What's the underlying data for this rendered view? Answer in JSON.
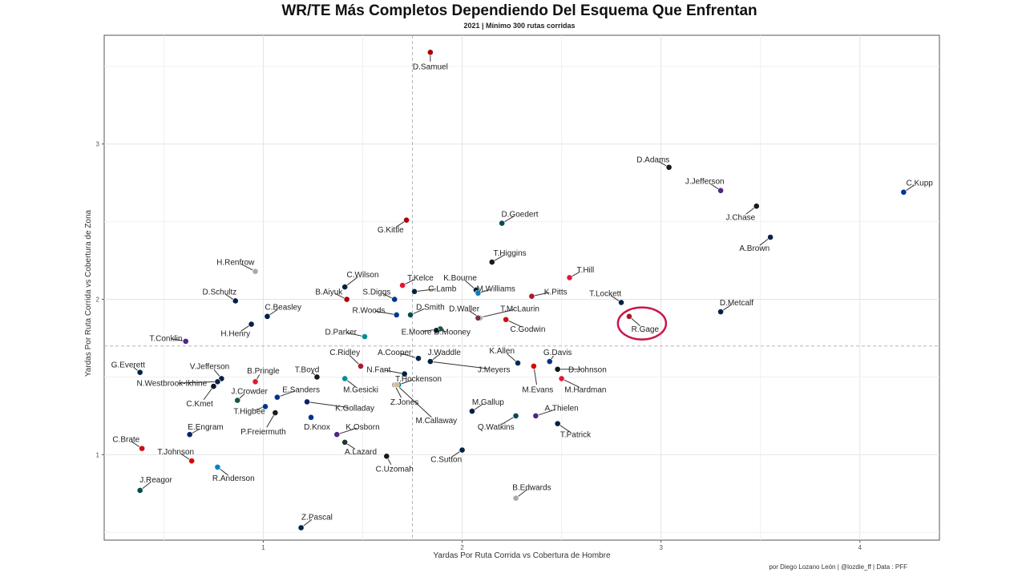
{
  "chart_data": {
    "type": "scatter",
    "title": "WR/TE Más Completos Dependiendo Del Esquema Que Enfrentan",
    "subtitle": "2021 | Mínimo 300 rutas corridas",
    "xlabel": "Yardas Por Ruta Corrida vs Cobertura de Hombre",
    "ylabel": "Yardas Por Ruta Corrida vs Cobertura de Zona",
    "caption": "por Diego Lozano León | @lozdie_ff | Data : PFF",
    "xlim": [
      0.2,
      4.4
    ],
    "ylim": [
      0.45,
      3.7
    ],
    "xticks": [
      1,
      2,
      3,
      4
    ],
    "yticks": [
      1,
      2,
      3
    ],
    "x_reference": 1.75,
    "y_reference": 1.7,
    "highlight": "R.Gage",
    "highlight_color": "#c8174a",
    "points": [
      {
        "name": "D.Samuel",
        "x": 1.84,
        "y": 3.59,
        "color": "#aa0000",
        "lx": 1.84,
        "ly": 3.5
      },
      {
        "name": "D.Adams",
        "x": 3.04,
        "y": 2.85,
        "color": "#1a1a1a",
        "lx": 2.96,
        "ly": 2.9
      },
      {
        "name": "J.Jefferson",
        "x": 3.3,
        "y": 2.7,
        "color": "#4f2683",
        "lx": 3.22,
        "ly": 2.76
      },
      {
        "name": "C.Kupp",
        "x": 4.22,
        "y": 2.69,
        "color": "#003594",
        "lx": 4.3,
        "ly": 2.75
      },
      {
        "name": "J.Chase",
        "x": 3.48,
        "y": 2.6,
        "color": "#1a1a1a",
        "lx": 3.4,
        "ly": 2.53
      },
      {
        "name": "A.Brown",
        "x": 3.55,
        "y": 2.4,
        "color": "#0c2340",
        "lx": 3.47,
        "ly": 2.33
      },
      {
        "name": "D.Goedert",
        "x": 2.2,
        "y": 2.49,
        "color": "#004c54",
        "lx": 2.29,
        "ly": 2.55
      },
      {
        "name": "G.Kittle",
        "x": 1.72,
        "y": 2.51,
        "color": "#aa0000",
        "lx": 1.64,
        "ly": 2.45
      },
      {
        "name": "T.Higgins",
        "x": 2.15,
        "y": 2.24,
        "color": "#1a1a1a",
        "lx": 2.24,
        "ly": 2.3
      },
      {
        "name": "T.Hill",
        "x": 2.54,
        "y": 2.14,
        "color": "#e31837",
        "lx": 2.62,
        "ly": 2.19
      },
      {
        "name": "H.Renfrow",
        "x": 0.96,
        "y": 2.18,
        "color": "#a5acaf",
        "lx": 0.86,
        "ly": 2.24
      },
      {
        "name": "C.Wilson",
        "x": 1.41,
        "y": 2.08,
        "color": "#002244",
        "lx": 1.5,
        "ly": 2.16
      },
      {
        "name": "T.Kelce",
        "x": 1.7,
        "y": 2.09,
        "color": "#e31837",
        "lx": 1.79,
        "ly": 2.14
      },
      {
        "name": "K.Bourne",
        "x": 2.07,
        "y": 2.06,
        "color": "#002244",
        "lx": 1.99,
        "ly": 2.14
      },
      {
        "name": "M.Williams",
        "x": 2.08,
        "y": 2.04,
        "color": "#0080c6",
        "lx": 2.17,
        "ly": 2.07
      },
      {
        "name": "C.Lamb",
        "x": 1.76,
        "y": 2.05,
        "color": "#002244",
        "lx": 1.9,
        "ly": 2.07
      },
      {
        "name": "S.Diggs",
        "x": 1.66,
        "y": 2.0,
        "color": "#00338d",
        "lx": 1.57,
        "ly": 2.05
      },
      {
        "name": "B.Aiyuk",
        "x": 1.42,
        "y": 2.0,
        "color": "#aa0000",
        "lx": 1.33,
        "ly": 2.05
      },
      {
        "name": "K.Pitts",
        "x": 2.35,
        "y": 2.02,
        "color": "#a71930",
        "lx": 2.47,
        "ly": 2.05
      },
      {
        "name": "D.Schultz",
        "x": 0.86,
        "y": 1.99,
        "color": "#002244",
        "lx": 0.78,
        "ly": 2.05
      },
      {
        "name": "T.Lockett",
        "x": 2.8,
        "y": 1.98,
        "color": "#002244",
        "lx": 2.72,
        "ly": 2.04
      },
      {
        "name": "D.Metcalf",
        "x": 3.3,
        "y": 1.92,
        "color": "#002244",
        "lx": 3.38,
        "ly": 1.98
      },
      {
        "name": "D.Smith",
        "x": 1.74,
        "y": 1.9,
        "color": "#004c54",
        "lx": 1.84,
        "ly": 1.95
      },
      {
        "name": "R.Woods",
        "x": 1.67,
        "y": 1.9,
        "color": "#003594",
        "lx": 1.53,
        "ly": 1.93
      },
      {
        "name": "D.Waller",
        "x": 2.09,
        "y": 1.88,
        "color": "#a5acaf",
        "lx": 2.01,
        "ly": 1.94
      },
      {
        "name": "T.McLaurin",
        "x": 2.08,
        "y": 1.88,
        "color": "#773141",
        "lx": 2.29,
        "ly": 1.94
      },
      {
        "name": "R.Gage",
        "x": 2.84,
        "y": 1.89,
        "color": "#a71930",
        "lx": 2.92,
        "ly": 1.81
      },
      {
        "name": "C.Beasley",
        "x": 1.02,
        "y": 1.89,
        "color": "#002244",
        "lx": 1.1,
        "ly": 1.95
      },
      {
        "name": "C.Godwin",
        "x": 2.22,
        "y": 1.87,
        "color": "#d50a0a",
        "lx": 2.33,
        "ly": 1.81
      },
      {
        "name": "H.Henry",
        "x": 0.94,
        "y": 1.84,
        "color": "#002244",
        "lx": 0.86,
        "ly": 1.78
      },
      {
        "name": "E.Moore",
        "x": 1.89,
        "y": 1.81,
        "color": "#125740",
        "lx": 1.77,
        "ly": 1.79
      },
      {
        "name": "D.Mooney",
        "x": 1.87,
        "y": 1.8,
        "color": "#0b162a",
        "lx": 1.95,
        "ly": 1.79
      },
      {
        "name": "D.Parker",
        "x": 1.51,
        "y": 1.76,
        "color": "#008e97",
        "lx": 1.39,
        "ly": 1.79
      },
      {
        "name": "T.Conklin",
        "x": 0.61,
        "y": 1.73,
        "color": "#4f2683",
        "lx": 0.51,
        "ly": 1.75
      },
      {
        "name": "A.Cooper",
        "x": 1.78,
        "y": 1.62,
        "color": "#002244",
        "lx": 1.66,
        "ly": 1.66
      },
      {
        "name": "J.Waddle",
        "x": 1.84,
        "y": 1.6,
        "color": "#008e97",
        "lx": 1.91,
        "ly": 1.66
      },
      {
        "name": "C.Ridley",
        "x": 1.49,
        "y": 1.57,
        "color": "#a71930",
        "lx": 1.41,
        "ly": 1.66
      },
      {
        "name": "K.Allen",
        "x": 2.28,
        "y": 1.59,
        "color": "#002a5e",
        "lx": 2.2,
        "ly": 1.67
      },
      {
        "name": "G.Davis",
        "x": 2.44,
        "y": 1.6,
        "color": "#00338d",
        "lx": 2.48,
        "ly": 1.66
      },
      {
        "name": "J.Meyers",
        "x": 1.84,
        "y": 1.6,
        "color": "#002244",
        "lx": 2.16,
        "ly": 1.55
      },
      {
        "name": "D.Johnson",
        "x": 2.48,
        "y": 1.55,
        "color": "#101820",
        "lx": 2.63,
        "ly": 1.55
      },
      {
        "name": "G.Everett",
        "x": 0.38,
        "y": 1.53,
        "color": "#002244",
        "lx": 0.32,
        "ly": 1.58
      },
      {
        "name": "V.Jefferson",
        "x": 0.79,
        "y": 1.49,
        "color": "#002244",
        "lx": 0.73,
        "ly": 1.57
      },
      {
        "name": "B.Pringle",
        "x": 0.96,
        "y": 1.47,
        "color": "#e31837",
        "lx": 1.0,
        "ly": 1.54
      },
      {
        "name": "T.Boyd",
        "x": 1.27,
        "y": 1.5,
        "color": "#1a1a1a",
        "lx": 1.22,
        "ly": 1.55
      },
      {
        "name": "N.Fant",
        "x": 1.71,
        "y": 1.52,
        "color": "#002244",
        "lx": 1.58,
        "ly": 1.55
      },
      {
        "name": "T.Hockenson",
        "x": 1.68,
        "y": 1.45,
        "color": "#0076b6",
        "lx": 1.78,
        "ly": 1.49
      },
      {
        "name": "M.Gesicki",
        "x": 1.41,
        "y": 1.49,
        "color": "#008e97",
        "lx": 1.49,
        "ly": 1.42
      },
      {
        "name": "M.Evans",
        "x": 2.36,
        "y": 1.57,
        "color": "#d50a0a",
        "lx": 2.38,
        "ly": 1.42
      },
      {
        "name": "M.Hardman",
        "x": 2.5,
        "y": 1.49,
        "color": "#e31837",
        "lx": 2.62,
        "ly": 1.42
      },
      {
        "name": "N.Westbrook-Ikhine",
        "x": 0.77,
        "y": 1.47,
        "color": "#0c2340",
        "lx": 0.54,
        "ly": 1.46
      },
      {
        "name": "J.Crowder",
        "x": 0.87,
        "y": 1.35,
        "color": "#125740",
        "lx": 0.93,
        "ly": 1.41
      },
      {
        "name": "E.Sanders",
        "x": 1.07,
        "y": 1.37,
        "color": "#00338d",
        "lx": 1.19,
        "ly": 1.42
      },
      {
        "name": "C.Kmet",
        "x": 0.75,
        "y": 1.44,
        "color": "#0b162a",
        "lx": 0.68,
        "ly": 1.33
      },
      {
        "name": "Z.Jones",
        "x": 1.66,
        "y": 1.45,
        "color": "#a5acaf",
        "lx": 1.71,
        "ly": 1.34
      },
      {
        "name": "K.Golladay",
        "x": 1.22,
        "y": 1.34,
        "color": "#0b2265",
        "lx": 1.46,
        "ly": 1.3
      },
      {
        "name": "M.Gallup",
        "x": 2.05,
        "y": 1.28,
        "color": "#002244",
        "lx": 2.13,
        "ly": 1.34
      },
      {
        "name": "A.Thielen",
        "x": 2.37,
        "y": 1.25,
        "color": "#4f2683",
        "lx": 2.5,
        "ly": 1.3
      },
      {
        "name": "T.Higbee",
        "x": 1.01,
        "y": 1.31,
        "color": "#003594",
        "lx": 0.93,
        "ly": 1.28
      },
      {
        "name": "P.Freiermuth",
        "x": 1.06,
        "y": 1.27,
        "color": "#1a1a1a",
        "lx": 1.0,
        "ly": 1.15
      },
      {
        "name": "M.Callaway",
        "x": 1.67,
        "y": 1.45,
        "color": "#d3bc8d",
        "lx": 1.87,
        "ly": 1.22
      },
      {
        "name": "Q.Watkins",
        "x": 2.27,
        "y": 1.25,
        "color": "#004c54",
        "lx": 2.17,
        "ly": 1.18
      },
      {
        "name": "T.Patrick",
        "x": 2.48,
        "y": 1.2,
        "color": "#002244",
        "lx": 2.57,
        "ly": 1.13
      },
      {
        "name": "E.Engram",
        "x": 0.63,
        "y": 1.13,
        "color": "#0b2265",
        "lx": 0.71,
        "ly": 1.18
      },
      {
        "name": "D.Knox",
        "x": 1.24,
        "y": 1.24,
        "color": "#00338d",
        "lx": 1.27,
        "ly": 1.18
      },
      {
        "name": "K.Osborn",
        "x": 1.37,
        "y": 1.13,
        "color": "#4f2683",
        "lx": 1.5,
        "ly": 1.18
      },
      {
        "name": "C.Brate",
        "x": 0.39,
        "y": 1.04,
        "color": "#d50a0a",
        "lx": 0.31,
        "ly": 1.1
      },
      {
        "name": "A.Lazard",
        "x": 1.41,
        "y": 1.08,
        "color": "#203731",
        "lx": 1.49,
        "ly": 1.02
      },
      {
        "name": "T.Johnson",
        "x": 0.64,
        "y": 0.96,
        "color": "#d50a0a",
        "lx": 0.56,
        "ly": 1.02
      },
      {
        "name": "C.Sutton",
        "x": 2.0,
        "y": 1.03,
        "color": "#002244",
        "lx": 1.92,
        "ly": 0.97
      },
      {
        "name": "C.Uzomah",
        "x": 1.62,
        "y": 0.99,
        "color": "#1a1a1a",
        "lx": 1.66,
        "ly": 0.91
      },
      {
        "name": "R.Anderson",
        "x": 0.77,
        "y": 0.92,
        "color": "#0085ca",
        "lx": 0.85,
        "ly": 0.85
      },
      {
        "name": "J.Reagor",
        "x": 0.38,
        "y": 0.77,
        "color": "#004c54",
        "lx": 0.46,
        "ly": 0.84
      },
      {
        "name": "B.Edwards",
        "x": 2.27,
        "y": 0.72,
        "color": "#a5acaf",
        "lx": 2.35,
        "ly": 0.79
      },
      {
        "name": "Z.Pascal",
        "x": 1.19,
        "y": 0.53,
        "color": "#002244",
        "lx": 1.27,
        "ly": 0.6
      }
    ]
  }
}
